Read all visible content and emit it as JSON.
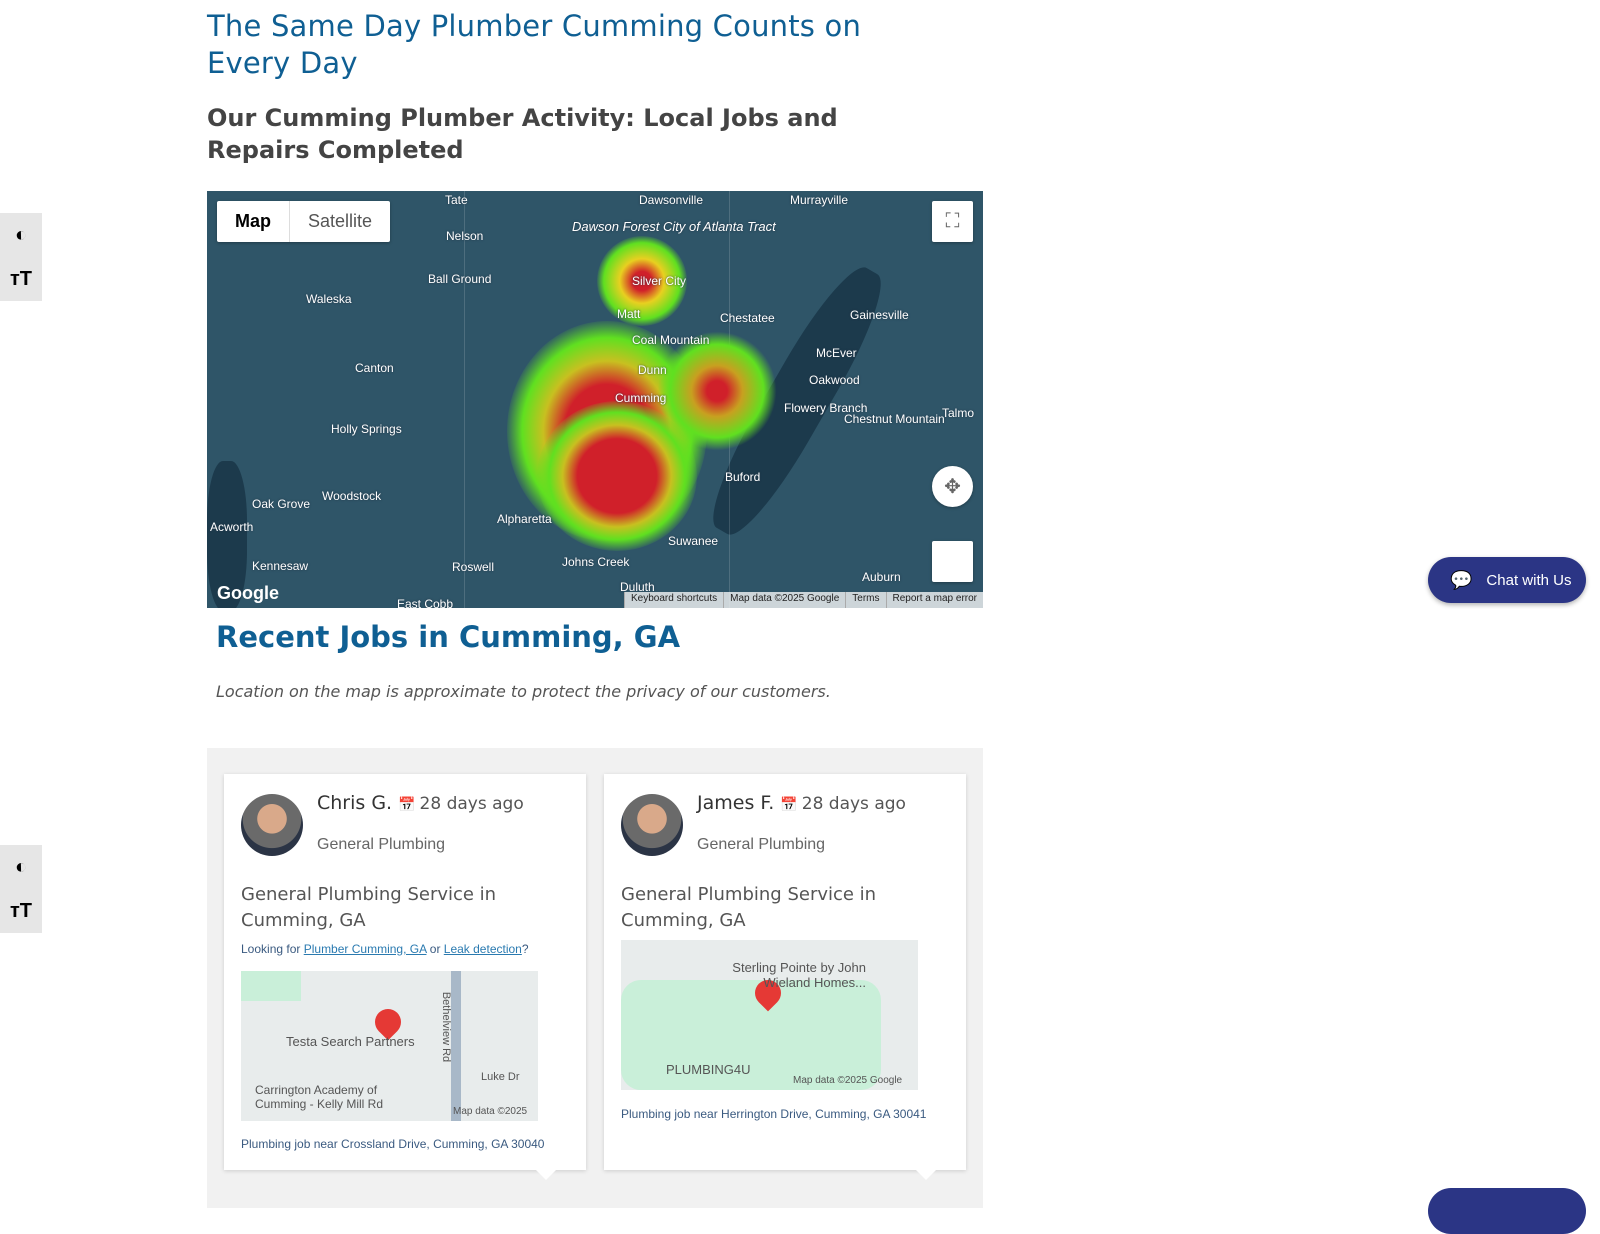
{
  "headings": {
    "title": "The Same Day Plumber Cumming Counts on Every Day",
    "subtitle": "Our Cumming Plumber Activity: Local Jobs and Repairs Completed"
  },
  "map": {
    "type_buttons": [
      "Map",
      "Satellite"
    ],
    "labels": [
      "Tate",
      "Dawsonville",
      "Murrayville",
      "Nelson",
      "Ball Ground",
      "Waleska",
      "Silver City",
      "Matt",
      "Chestatee",
      "Gainesville",
      "Coal Mountain",
      "McEver",
      "Canton",
      "Dunn",
      "Oakwood",
      "Cumming",
      "Flowery Branch",
      "Chestnut Mountain",
      "Talmo",
      "Holly Springs",
      "Buford",
      "Woodstock",
      "Oak Grove",
      "Alpharetta",
      "Acworth",
      "Suwanee",
      "Kennesaw",
      "Roswell",
      "Johns Creek",
      "Auburn",
      "Duluth",
      "East Cobb"
    ],
    "forest_label": "Dawson Forest City of Atlanta Tract",
    "logo": "Google",
    "footer": [
      "Keyboard shortcuts",
      "Map data ©2025 Google",
      "Terms",
      "Report a map error"
    ],
    "heat_colors": {
      "hot": "#d0202a",
      "warm": "#f0e020",
      "cool": "#60e020"
    }
  },
  "recent": {
    "title": "Recent Jobs in Cumming, GA",
    "note": "Location on the map is approximate to protect the privacy of our customers."
  },
  "jobs": [
    {
      "name": "Chris G.",
      "ago": "28 days ago",
      "category": "General Plumbing",
      "title": "General Plumbing Service in Cumming, GA",
      "looking_prefix": "Looking for ",
      "link1": "Plumber Cumming, GA",
      "looking_mid": " or ",
      "link2": "Leak detection",
      "looking_suffix": "?",
      "map_labels": [
        "Testa Search Partners",
        "Bethelview Rd",
        "Luke Dr",
        "Carrington Academy of Cumming - Kelly Mill Rd",
        "Map data ©2025"
      ],
      "address": "Plumbing job near Crossland Drive, Cumming, GA 30040"
    },
    {
      "name": "James F.",
      "ago": "28 days ago",
      "category": "General Plumbing",
      "title": "General Plumbing Service in Cumming, GA",
      "map_labels": [
        "Sterling Pointe by John Wieland Homes...",
        "PLUMBING4U",
        "Map data ©2025 Google"
      ],
      "address": "Plumbing job near Herrington Drive, Cumming, GA 30041"
    }
  ],
  "chat": {
    "label": "Chat with Us",
    "color": "#2b3585"
  }
}
